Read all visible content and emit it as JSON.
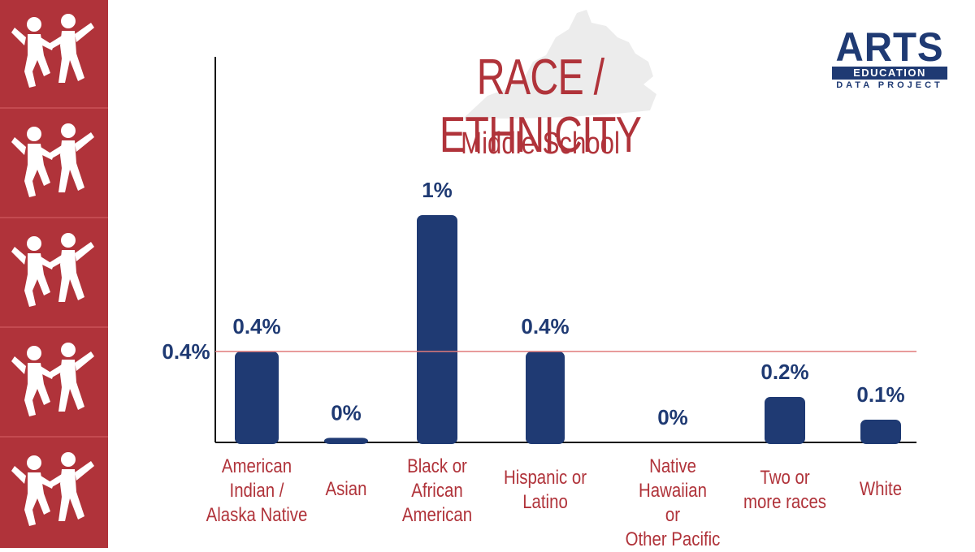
{
  "colors": {
    "accent": "#b0333a",
    "bar": "#1f3a73",
    "reference_line": "#e07a7a",
    "axis": "#111111",
    "silhouette": "#ececec"
  },
  "sidebar": {
    "icon": "dancing-figures-icon",
    "tile_count": 5
  },
  "logo": {
    "line1": "ARTS",
    "line2": "EDUCATION",
    "line3": "DATA PROJECT"
  },
  "chart_data": {
    "type": "bar",
    "title": "RACE / ETHNICITY",
    "subtitle": "Middle School",
    "categories": [
      "American Indian / Alaska Native",
      "Asian",
      "Black or African American",
      "Hispanic or Latino",
      "Native Hawaiian or Other Pacific",
      "Two or more races",
      "White"
    ],
    "category_lines": [
      [
        "American",
        "Indian /",
        "Alaska Native"
      ],
      [
        "Asian"
      ],
      [
        "Black or",
        "African",
        "American"
      ],
      [
        "Hispanic or",
        "Latino"
      ],
      [
        "Native Hawaiian",
        "or",
        "Other Pacific"
      ],
      [
        "Two or",
        "more races"
      ],
      [
        "White"
      ]
    ],
    "values": [
      0.4,
      0.02,
      1.0,
      0.4,
      0.0,
      0.2,
      0.1
    ],
    "data_labels": [
      "0.4%",
      "0%",
      "1%",
      "0.4%",
      "0%",
      "0.2%",
      "0.1%"
    ],
    "reference_line": {
      "value": 0.4,
      "label": "0.4%"
    },
    "ylim": [
      0,
      1.0
    ],
    "grid": false,
    "legend": "none"
  }
}
